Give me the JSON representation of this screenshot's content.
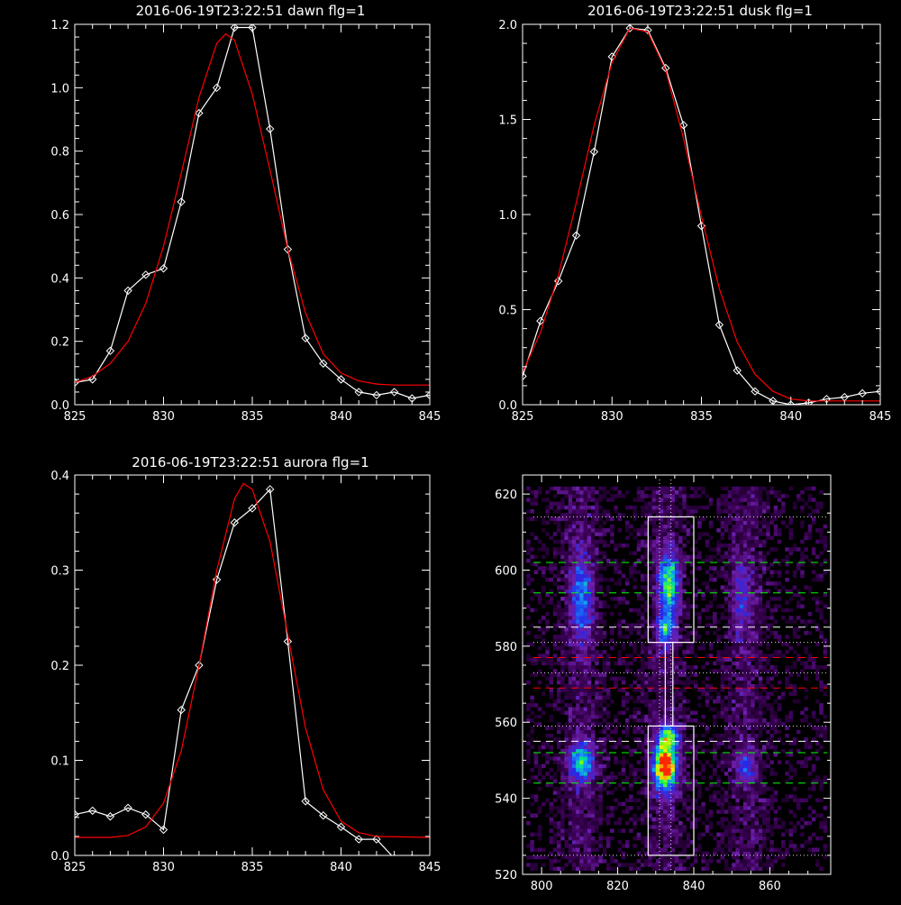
{
  "chart_data": [
    {
      "type": "line",
      "title": "2016-06-19T23:22:51 dawn flg=1",
      "xlim": [
        825,
        845
      ],
      "ylim": [
        0,
        1.2
      ],
      "xticks": [
        "825",
        "830",
        "835",
        "840",
        "845"
      ],
      "yticks": [
        "0.0",
        "0.2",
        "0.4",
        "0.6",
        "0.8",
        "1.0",
        "1.2"
      ],
      "series": [
        {
          "role": "data",
          "color": "#ffffff",
          "marker": "diamond",
          "x": [
            825,
            826,
            827,
            828,
            829,
            830,
            831,
            832,
            833,
            834,
            835,
            836,
            837,
            838,
            839,
            840,
            841,
            842,
            843,
            844,
            845
          ],
          "y": [
            0.07,
            0.08,
            0.17,
            0.36,
            0.41,
            0.43,
            0.64,
            0.92,
            1.0,
            1.19,
            1.19,
            0.87,
            0.49,
            0.21,
            0.13,
            0.08,
            0.04,
            0.03,
            0.04,
            0.02,
            0.03
          ]
        },
        {
          "role": "fit",
          "color": "#ff0000",
          "x": [
            825,
            826,
            827,
            828,
            829,
            830,
            831,
            832,
            833,
            833.5,
            834,
            835,
            836,
            837,
            838,
            839,
            840,
            841,
            842,
            843,
            844,
            845
          ],
          "y": [
            0.07,
            0.09,
            0.13,
            0.2,
            0.32,
            0.5,
            0.73,
            0.97,
            1.14,
            1.17,
            1.15,
            0.98,
            0.74,
            0.49,
            0.29,
            0.16,
            0.1,
            0.075,
            0.065,
            0.062,
            0.062,
            0.062
          ]
        }
      ]
    },
    {
      "type": "line",
      "title": "2016-06-19T23:22:51 dusk flg=1",
      "xlim": [
        825,
        845
      ],
      "ylim": [
        0,
        2.0
      ],
      "xticks": [
        "825",
        "830",
        "835",
        "840",
        "845"
      ],
      "yticks": [
        "0.0",
        "0.5",
        "1.0",
        "1.5",
        "2.0"
      ],
      "series": [
        {
          "role": "data",
          "color": "#ffffff",
          "marker": "diamond",
          "x": [
            825,
            826,
            827,
            828,
            829,
            830,
            831,
            832,
            833,
            834,
            835,
            836,
            837,
            838,
            839,
            840,
            841,
            842,
            843,
            844,
            845
          ],
          "y": [
            0.15,
            0.44,
            0.65,
            0.89,
            1.33,
            1.83,
            1.98,
            1.97,
            1.77,
            1.47,
            0.94,
            0.42,
            0.18,
            0.07,
            0.02,
            0.0,
            0.01,
            0.03,
            0.04,
            0.06,
            0.07
          ]
        },
        {
          "role": "fit",
          "color": "#ff0000",
          "x": [
            825,
            826,
            827,
            828,
            829,
            830,
            831,
            832,
            833,
            834,
            835,
            836,
            837,
            838,
            839,
            840,
            841,
            842,
            843,
            844,
            845
          ],
          "y": [
            0.17,
            0.38,
            0.68,
            1.06,
            1.47,
            1.8,
            1.98,
            1.96,
            1.76,
            1.4,
            0.99,
            0.61,
            0.33,
            0.16,
            0.07,
            0.03,
            0.02,
            0.02,
            0.02,
            0.02,
            0.02
          ]
        }
      ]
    },
    {
      "type": "line",
      "title": "2016-06-19T23:22:51 aurora flg=1",
      "xlim": [
        825,
        845
      ],
      "ylim": [
        0,
        0.4
      ],
      "xticks": [
        "825",
        "830",
        "835",
        "840",
        "845"
      ],
      "yticks": [
        "0.0",
        "0.1",
        "0.2",
        "0.3",
        "0.4"
      ],
      "series": [
        {
          "role": "data",
          "color": "#ffffff",
          "marker": "diamond",
          "x": [
            825,
            826,
            827,
            828,
            829,
            830,
            831,
            832,
            833,
            834,
            835,
            836,
            837,
            838,
            839,
            840,
            841,
            842,
            843,
            844,
            845
          ],
          "y": [
            0.043,
            0.047,
            0.041,
            0.05,
            0.043,
            0.027,
            0.153,
            0.2,
            0.29,
            0.35,
            0.365,
            0.385,
            0.225,
            0.057,
            0.042,
            0.03,
            0.017,
            0.017,
            -0.003,
            -0.003,
            -0.013
          ]
        },
        {
          "role": "fit",
          "color": "#ff0000",
          "x": [
            825,
            827,
            828,
            829,
            830,
            831,
            832,
            833,
            834,
            834.5,
            835,
            836,
            837,
            838,
            839,
            840,
            841,
            842,
            845
          ],
          "y": [
            0.019,
            0.019,
            0.021,
            0.03,
            0.055,
            0.11,
            0.2,
            0.3,
            0.375,
            0.391,
            0.385,
            0.33,
            0.232,
            0.134,
            0.069,
            0.036,
            0.024,
            0.02,
            0.019
          ]
        }
      ]
    },
    {
      "type": "heatmap",
      "title": "",
      "xlim": [
        795,
        876
      ],
      "ylim": [
        520,
        625
      ],
      "xticks": [
        "800",
        "820",
        "840",
        "860"
      ],
      "yticks": [
        "520",
        "540",
        "560",
        "580",
        "600",
        "620"
      ],
      "blobs": [
        {
          "x": 810,
          "y": 549,
          "sx": 2.2,
          "sy": 3.5,
          "amp": 0.58
        },
        {
          "x": 810,
          "y": 592,
          "sx": 2.0,
          "sy": 8.0,
          "amp": 0.4
        },
        {
          "x": 832,
          "y": 548,
          "sx": 2.2,
          "sy": 4.5,
          "amp": 0.95
        },
        {
          "x": 833,
          "y": 556,
          "sx": 1.8,
          "sy": 2.2,
          "amp": 0.5
        },
        {
          "x": 833,
          "y": 596,
          "sx": 1.8,
          "sy": 5.5,
          "amp": 0.62
        },
        {
          "x": 832,
          "y": 584,
          "sx": 1.6,
          "sy": 3.0,
          "amp": 0.48
        },
        {
          "x": 853,
          "y": 548,
          "sx": 1.8,
          "sy": 3.0,
          "amp": 0.34
        },
        {
          "x": 852,
          "y": 592,
          "sx": 1.8,
          "sy": 7.0,
          "amp": 0.22
        }
      ],
      "boxes": [
        {
          "x0": 828,
          "x1": 840,
          "y0": 525,
          "y1": 559
        },
        {
          "x0": 828,
          "x1": 840,
          "y0": 581,
          "y1": 614
        }
      ],
      "connector": {
        "x0": 832.5,
        "x1": 834.5,
        "y0": 559,
        "y1": 581
      },
      "vlines": [
        831,
        834
      ],
      "hlines": [
        {
          "y": 525,
          "color": "#d8d8d8",
          "style": "dotted"
        },
        {
          "y": 544,
          "color": "#00ff00",
          "style": "dashed"
        },
        {
          "y": 552,
          "color": "#00ff00",
          "style": "dashed"
        },
        {
          "y": 555,
          "color": "#ffffff",
          "style": "dashed"
        },
        {
          "y": 559,
          "color": "#d8d8d8",
          "style": "dotted"
        },
        {
          "y": 569,
          "color": "#ff0000",
          "style": "dashed"
        },
        {
          "y": 573,
          "color": "#d8d8d8",
          "style": "dotted"
        },
        {
          "y": 577,
          "color": "#ff0000",
          "style": "dashed"
        },
        {
          "y": 581,
          "color": "#d8d8d8",
          "style": "dotted"
        },
        {
          "y": 585,
          "color": "#ffffff",
          "style": "dashed"
        },
        {
          "y": 594,
          "color": "#00ff00",
          "style": "dashed"
        },
        {
          "y": 602,
          "color": "#00ff00",
          "style": "dashed"
        },
        {
          "y": 614,
          "color": "#d8d8d8",
          "style": "dotted"
        }
      ]
    }
  ]
}
